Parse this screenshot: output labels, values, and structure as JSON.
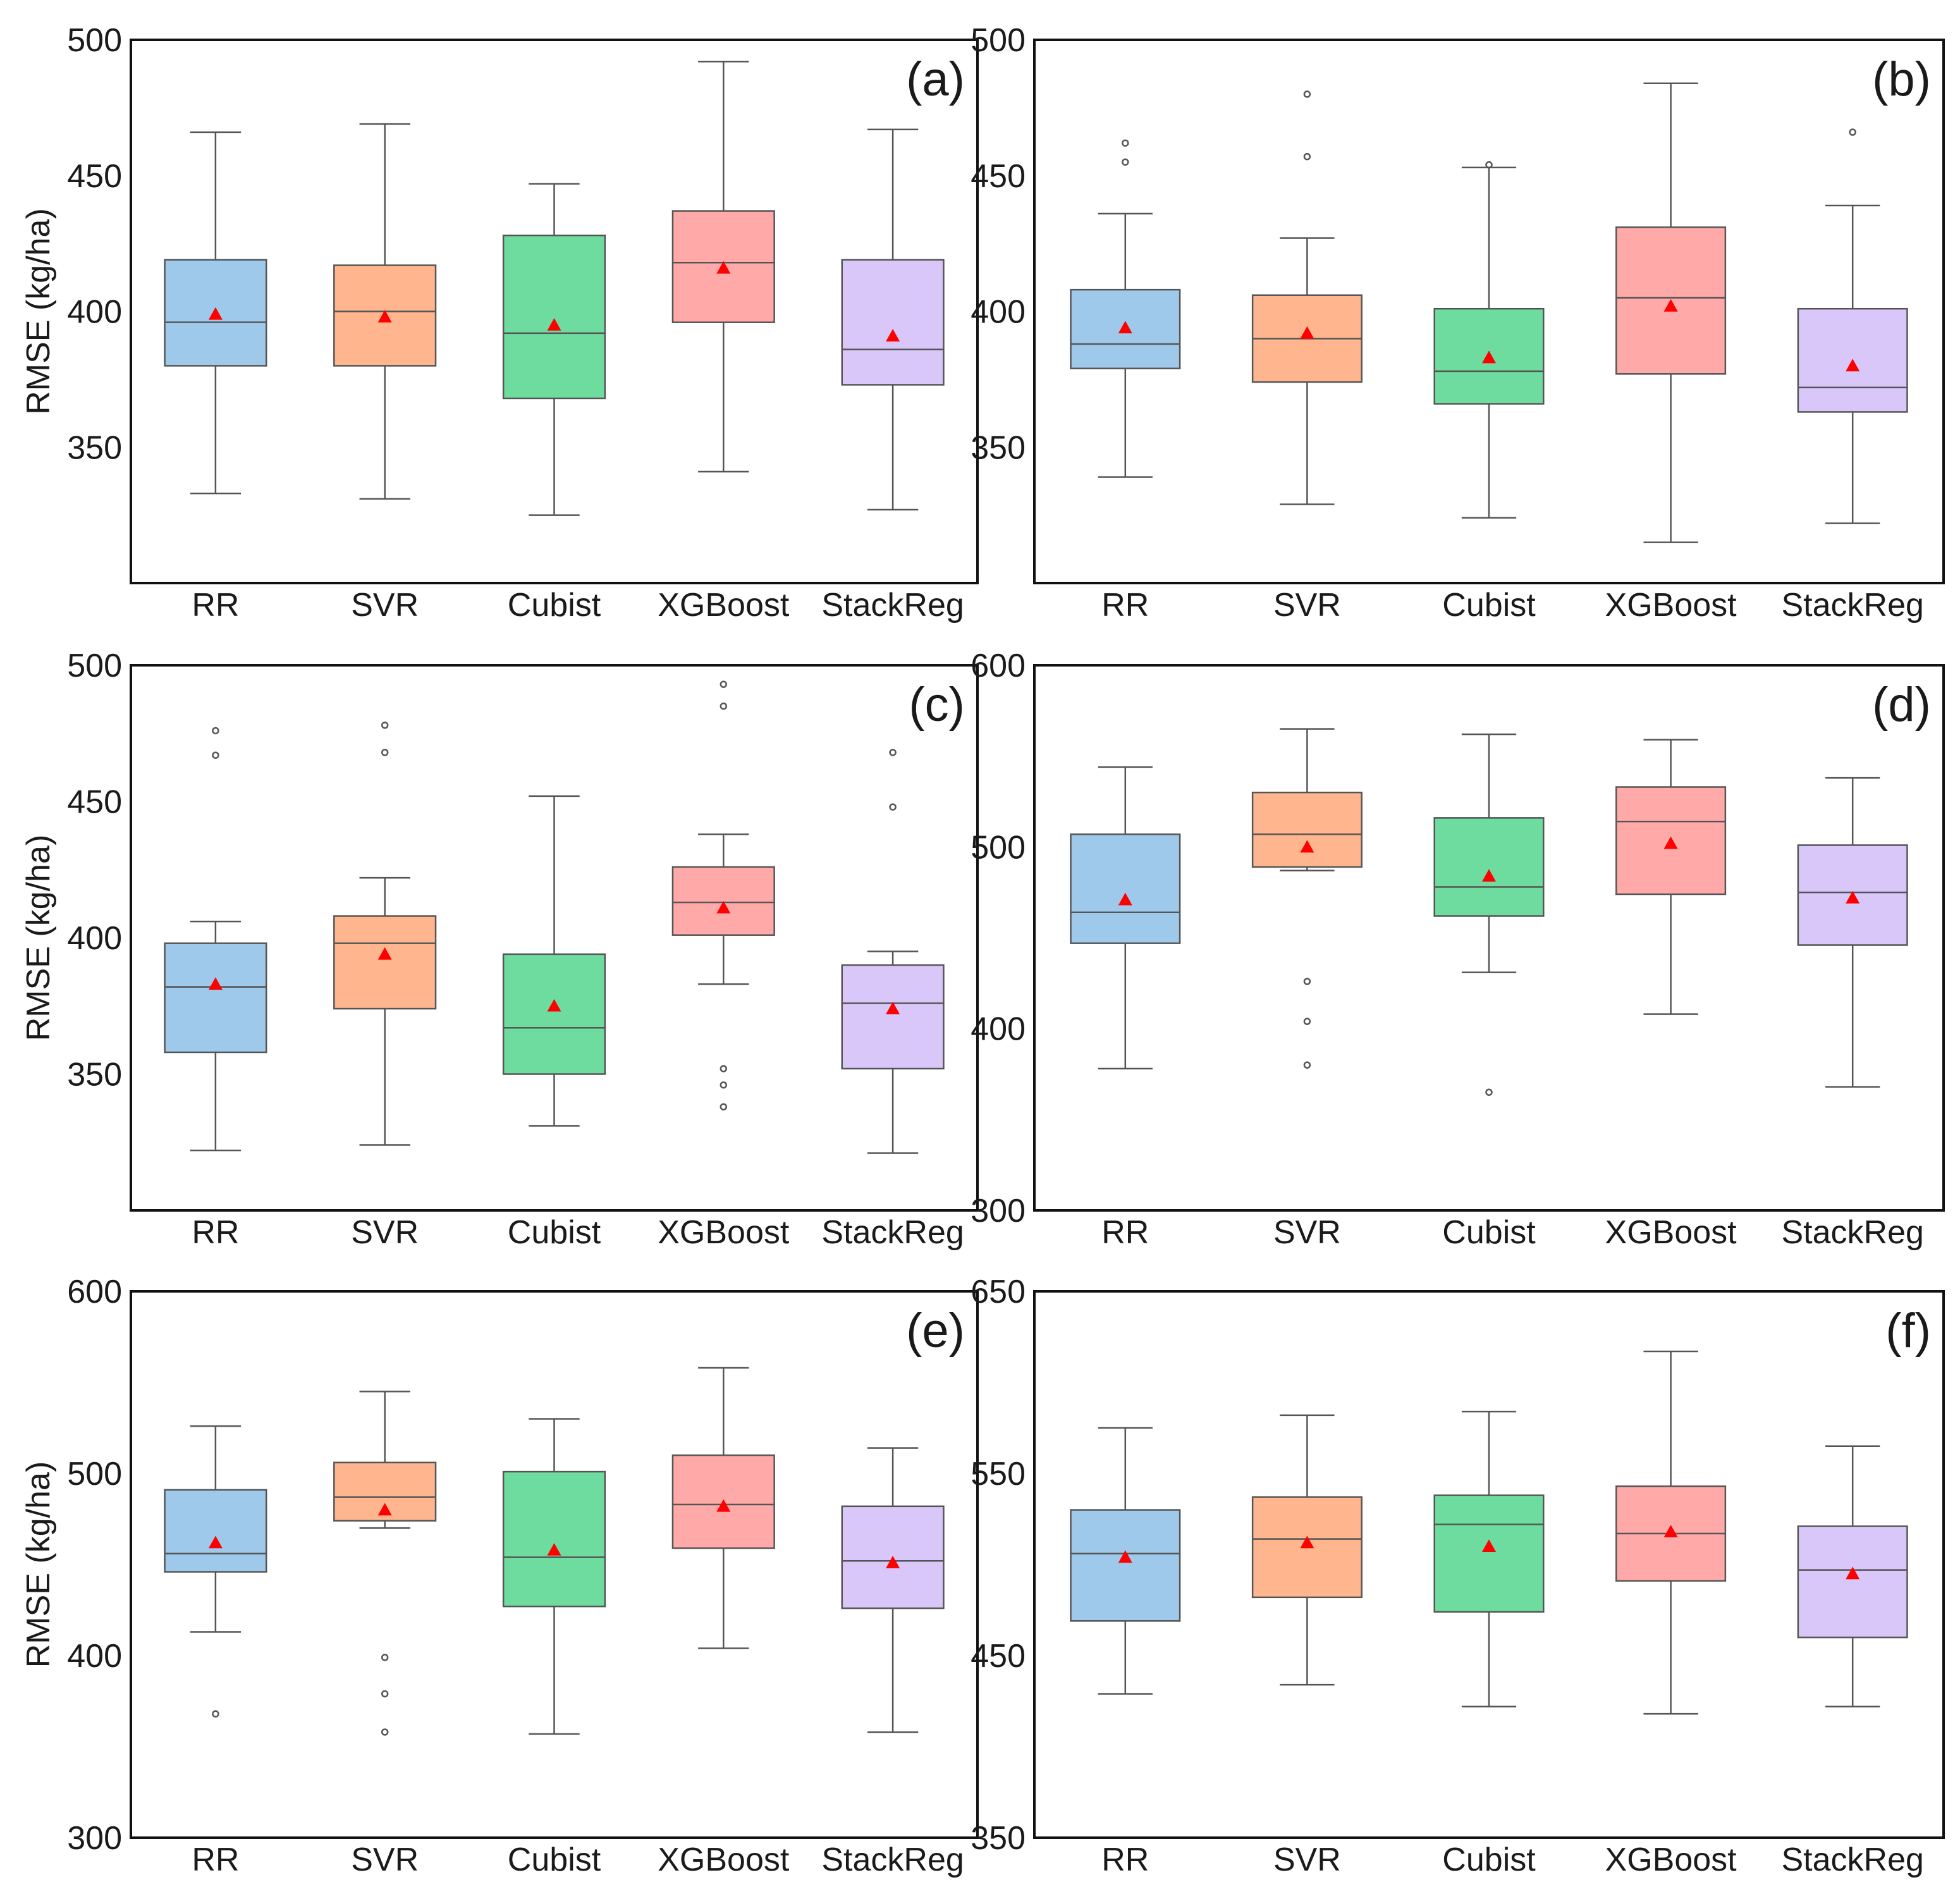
{
  "chart_data": [
    {
      "type": "box",
      "panel_label": "(a)",
      "ylabel": "RMSE (kg/ha)",
      "ylim": [
        300,
        500
      ],
      "yticks": [
        350,
        400,
        450,
        500
      ],
      "categories": [
        "RR",
        "SVR",
        "Cubist",
        "XGBoost",
        "StackReg"
      ],
      "boxes": [
        {
          "category": "RR",
          "whislo": 333,
          "q1": 380,
          "median": 396,
          "q3": 419,
          "whishi": 466,
          "mean": 399,
          "fliers": []
        },
        {
          "category": "SVR",
          "whislo": 331,
          "q1": 380,
          "median": 400,
          "q3": 417,
          "whishi": 469,
          "mean": 398,
          "fliers": []
        },
        {
          "category": "Cubist",
          "whislo": 325,
          "q1": 368,
          "median": 392,
          "q3": 428,
          "whishi": 447,
          "mean": 395,
          "fliers": []
        },
        {
          "category": "XGBoost",
          "whislo": 341,
          "q1": 396,
          "median": 418,
          "q3": 437,
          "whishi": 492,
          "mean": 416,
          "fliers": []
        },
        {
          "category": "StackReg",
          "whislo": 327,
          "q1": 373,
          "median": 386,
          "q3": 419,
          "whishi": 467,
          "mean": 391,
          "fliers": []
        }
      ]
    },
    {
      "type": "box",
      "panel_label": "(b)",
      "ylabel": "",
      "ylim": [
        300,
        500
      ],
      "yticks": [
        350,
        400,
        450,
        500
      ],
      "categories": [
        "RR",
        "SVR",
        "Cubist",
        "XGBoost",
        "StackReg"
      ],
      "boxes": [
        {
          "category": "RR",
          "whislo": 339,
          "q1": 379,
          "median": 388,
          "q3": 408,
          "whishi": 436,
          "mean": 394,
          "fliers": [
            455,
            462
          ]
        },
        {
          "category": "SVR",
          "whislo": 329,
          "q1": 374,
          "median": 390,
          "q3": 406,
          "whishi": 427,
          "mean": 392,
          "fliers": [
            457,
            480
          ]
        },
        {
          "category": "Cubist",
          "whislo": 324,
          "q1": 366,
          "median": 378,
          "q3": 401,
          "whishi": 453,
          "mean": 383,
          "fliers": [
            454
          ]
        },
        {
          "category": "XGBoost",
          "whislo": 315,
          "q1": 377,
          "median": 405,
          "q3": 431,
          "whishi": 484,
          "mean": 402,
          "fliers": []
        },
        {
          "category": "StackReg",
          "whislo": 322,
          "q1": 363,
          "median": 372,
          "q3": 401,
          "whishi": 439,
          "mean": 380,
          "fliers": [
            466
          ]
        }
      ]
    },
    {
      "type": "box",
      "panel_label": "(c)",
      "ylabel": "RMSE (kg/ha)",
      "ylim": [
        300,
        500
      ],
      "yticks": [
        350,
        400,
        450,
        500
      ],
      "categories": [
        "RR",
        "SVR",
        "Cubist",
        "XGBoost",
        "StackReg"
      ],
      "boxes": [
        {
          "category": "RR",
          "whislo": 322,
          "q1": 358,
          "median": 382,
          "q3": 398,
          "whishi": 406,
          "mean": 383,
          "fliers": [
            467,
            476
          ]
        },
        {
          "category": "SVR",
          "whislo": 324,
          "q1": 374,
          "median": 398,
          "q3": 408,
          "whishi": 422,
          "mean": 394,
          "fliers": [
            468,
            478
          ]
        },
        {
          "category": "Cubist",
          "whislo": 331,
          "q1": 350,
          "median": 367,
          "q3": 394,
          "whishi": 452,
          "mean": 375,
          "fliers": []
        },
        {
          "category": "XGBoost",
          "whislo": 383,
          "q1": 401,
          "median": 413,
          "q3": 426,
          "whishi": 438,
          "mean": 411,
          "fliers": [
            338,
            346,
            352,
            485,
            493
          ]
        },
        {
          "category": "StackReg",
          "whislo": 321,
          "q1": 352,
          "median": 376,
          "q3": 390,
          "whishi": 395,
          "mean": 374,
          "fliers": [
            448,
            468
          ]
        }
      ]
    },
    {
      "type": "box",
      "panel_label": "(d)",
      "ylabel": "",
      "ylim": [
        300,
        600
      ],
      "yticks": [
        300,
        400,
        500,
        600
      ],
      "categories": [
        "RR",
        "SVR",
        "Cubist",
        "XGBoost",
        "StackReg"
      ],
      "boxes": [
        {
          "category": "RR",
          "whislo": 378,
          "q1": 447,
          "median": 464,
          "q3": 507,
          "whishi": 544,
          "mean": 471,
          "fliers": []
        },
        {
          "category": "SVR",
          "whislo": 487,
          "q1": 489,
          "median": 507,
          "q3": 530,
          "whishi": 565,
          "mean": 500,
          "fliers": [
            380,
            404,
            426
          ]
        },
        {
          "category": "Cubist",
          "whislo": 431,
          "q1": 462,
          "median": 478,
          "q3": 516,
          "whishi": 562,
          "mean": 484,
          "fliers": [
            365
          ]
        },
        {
          "category": "XGBoost",
          "whislo": 408,
          "q1": 474,
          "median": 514,
          "q3": 533,
          "whishi": 559,
          "mean": 502,
          "fliers": []
        },
        {
          "category": "StackReg",
          "whislo": 368,
          "q1": 446,
          "median": 475,
          "q3": 501,
          "whishi": 538,
          "mean": 472,
          "fliers": []
        }
      ]
    },
    {
      "type": "box",
      "panel_label": "(e)",
      "ylabel": "RMSE (kg/ha)",
      "ylim": [
        300,
        600
      ],
      "yticks": [
        300,
        400,
        500,
        600
      ],
      "categories": [
        "RR",
        "SVR",
        "Cubist",
        "XGBoost",
        "StackReg"
      ],
      "boxes": [
        {
          "category": "RR",
          "whislo": 413,
          "q1": 446,
          "median": 456,
          "q3": 491,
          "whishi": 526,
          "mean": 462,
          "fliers": [
            368
          ]
        },
        {
          "category": "SVR",
          "whislo": 470,
          "q1": 474,
          "median": 487,
          "q3": 506,
          "whishi": 545,
          "mean": 480,
          "fliers": [
            358,
            379,
            399
          ]
        },
        {
          "category": "Cubist",
          "whislo": 357,
          "q1": 427,
          "median": 454,
          "q3": 501,
          "whishi": 530,
          "mean": 458,
          "fliers": []
        },
        {
          "category": "XGBoost",
          "whislo": 404,
          "q1": 459,
          "median": 483,
          "q3": 510,
          "whishi": 558,
          "mean": 482,
          "fliers": []
        },
        {
          "category": "StackReg",
          "whislo": 358,
          "q1": 426,
          "median": 452,
          "q3": 482,
          "whishi": 514,
          "mean": 451,
          "fliers": []
        }
      ]
    },
    {
      "type": "box",
      "panel_label": "(f)",
      "ylabel": "",
      "ylim": [
        350,
        650
      ],
      "yticks": [
        350,
        450,
        550,
        650
      ],
      "categories": [
        "RR",
        "SVR",
        "Cubist",
        "XGBoost",
        "StackReg"
      ],
      "boxes": [
        {
          "category": "RR",
          "whislo": 429,
          "q1": 469,
          "median": 506,
          "q3": 530,
          "whishi": 575,
          "mean": 504,
          "fliers": []
        },
        {
          "category": "SVR",
          "whislo": 434,
          "q1": 482,
          "median": 514,
          "q3": 537,
          "whishi": 582,
          "mean": 512,
          "fliers": []
        },
        {
          "category": "Cubist",
          "whislo": 422,
          "q1": 474,
          "median": 522,
          "q3": 538,
          "whishi": 584,
          "mean": 510,
          "fliers": []
        },
        {
          "category": "XGBoost",
          "whislo": 418,
          "q1": 491,
          "median": 517,
          "q3": 543,
          "whishi": 617,
          "mean": 518,
          "fliers": []
        },
        {
          "category": "StackReg",
          "whislo": 422,
          "q1": 460,
          "median": 497,
          "q3": 521,
          "whishi": 565,
          "mean": 495,
          "fliers": []
        }
      ]
    }
  ],
  "colors": {
    "RR": "#9fc9ea",
    "SVR": "#ffb68e",
    "Cubist": "#6edc9f",
    "XGBoost": "#ffaaa9",
    "StackReg": "#d8c7f8",
    "mean_marker": "#ff0000"
  }
}
